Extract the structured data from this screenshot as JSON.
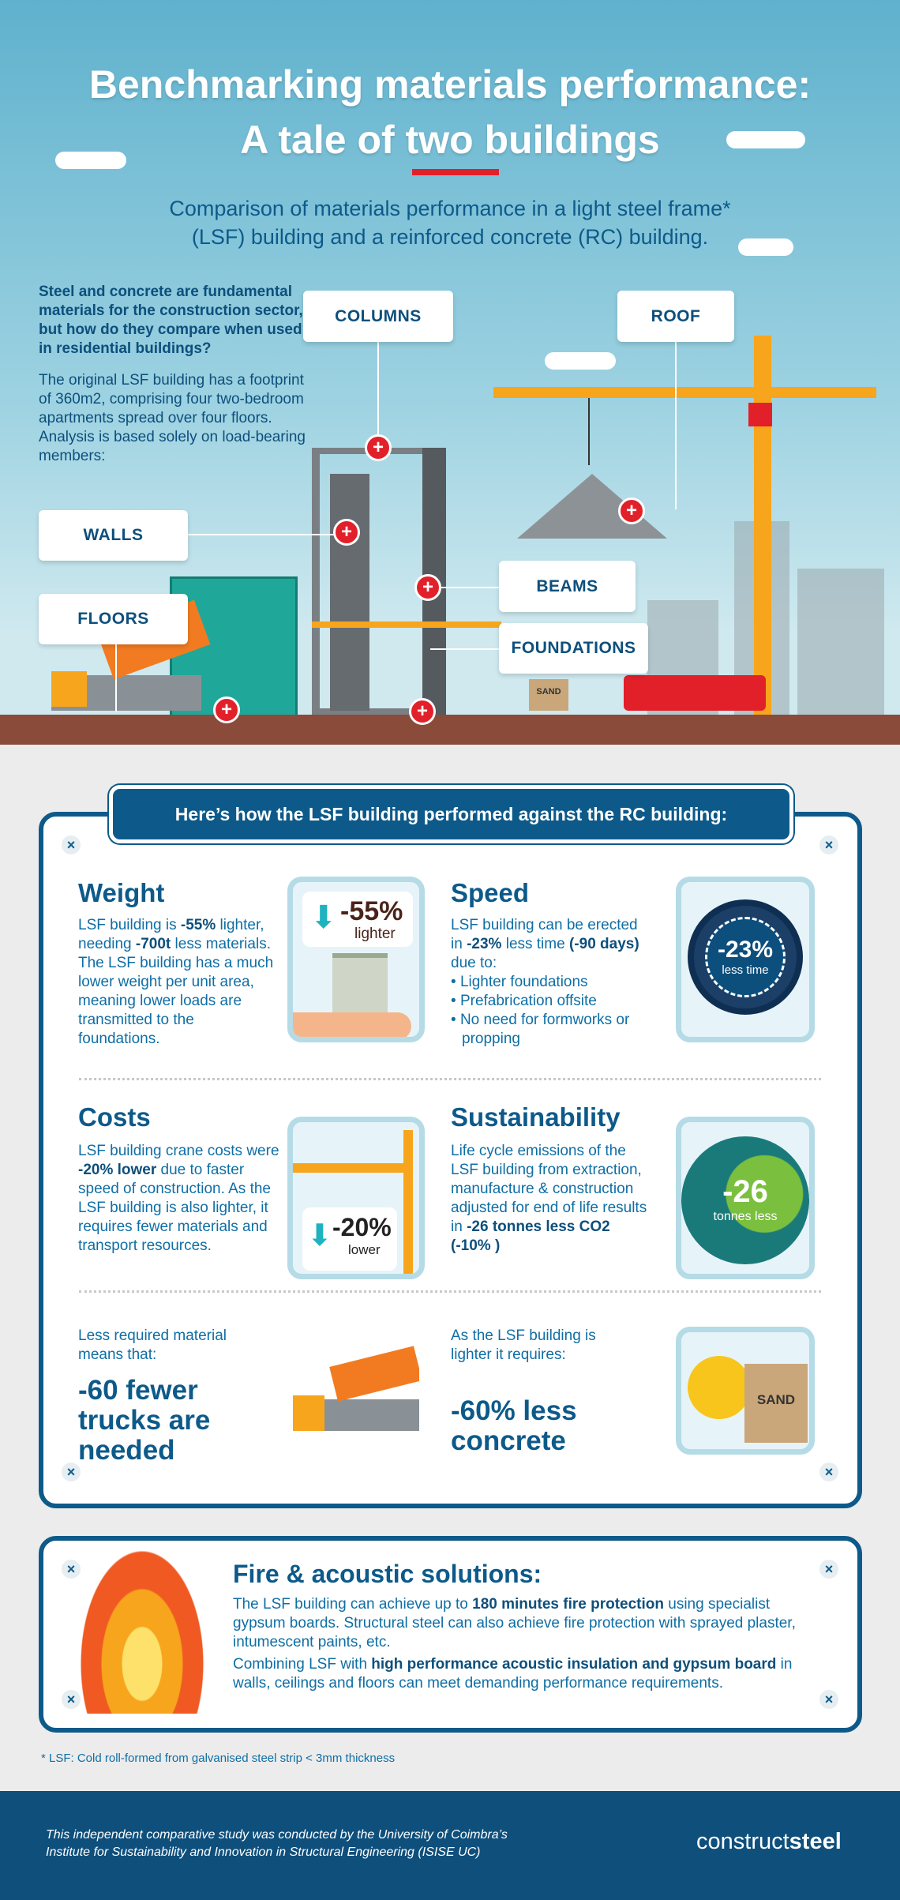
{
  "header": {
    "title_line1": "Benchmarking materials performance:",
    "title_line2": "A tale of two buildings",
    "subtitle_line1": "Comparison of materials performance in a light steel frame*",
    "subtitle_line2": "(LSF) building and a reinforced concrete (RC) building."
  },
  "intro": {
    "lead": "Steel and concrete are fundamental materials for the construction sector, but how do they compare when used in residential buildings?",
    "body": "The original LSF building has a footprint of 360m2, comprising four two-bedroom apartments spread over four floors. Analysis is based solely on load-bearing members:"
  },
  "labels": {
    "columns": "COLUMNS",
    "roof": "ROOF",
    "walls": "WALLS",
    "floors": "FLOORS",
    "beams": "BEAMS",
    "foundations": "FOUNDATIONS",
    "sand": "SAND"
  },
  "banner": "Here’s how the LSF building performed against the RC building:",
  "weight": {
    "title": "Weight",
    "t1": "LSF building is ",
    "b1": "-55%",
    "t2": " lighter, needing ",
    "b2": "-700t",
    "t3": " less materials. The LSF building has a much lower weight per unit area, meaning lower loads are transmitted to the foundations.",
    "badge": "-55%",
    "badge_sub": "lighter"
  },
  "speed": {
    "title": "Speed",
    "t1": "LSF building can be erected in ",
    "b1": "-23%",
    "t2": " less time ",
    "b2": "(-90 days)",
    "t3": " due to:",
    "bullets": [
      "Lighter foundations",
      "Prefabrication offsite",
      "No need for formworks or propping"
    ],
    "badge": "-23%",
    "badge_sub": "less time"
  },
  "costs": {
    "title": "Costs",
    "t1": "LSF building crane costs were ",
    "b1": "-20% lower",
    "t2": " due to faster speed of construction. As the LSF building is also lighter, it requires fewer materials and transport resources.",
    "badge": "-20%",
    "badge_sub": "lower"
  },
  "sustainability": {
    "title": "Sustainability",
    "t1": "Life cycle emissions of the LSF building from extraction, manufacture & construction adjusted for end of life results in ",
    "b1": "-26 tonnes less CO2 (-10% )",
    "badge": "-26",
    "badge_sub": "tonnes less"
  },
  "trucks": {
    "lead": "Less required material means that:",
    "big": "-60 fewer trucks are needed"
  },
  "concrete": {
    "lead": "As the LSF building is lighter it requires:",
    "big": "-60% less concrete"
  },
  "fire": {
    "title": "Fire & acoustic solutions:",
    "p1a": "The LSF building can achieve up to ",
    "p1b": "180 minutes fire protection",
    "p1c": " using specialist gypsum boards. Structural steel can also achieve fire protection with sprayed plaster, intumescent paints, etc.",
    "p2a": "Combining LSF with ",
    "p2b": "high performance acoustic insulation and gypsum board",
    "p2c": " in walls, ceilings and floors can meet demanding performance requirements."
  },
  "footnote": "* LSF: Cold roll-formed from galvanised steel strip < 3mm thickness",
  "footer": {
    "credit": "This independent comparative study was conducted by the University of Coimbra’s Institute for Sustainability and Innovation in Structural Engineering (ISISE UC)",
    "logo_a": "construct",
    "logo_b": "steel"
  },
  "colors": {
    "primary": "#0d5a8a",
    "accent_red": "#e2202a",
    "crane": "#f7a51c",
    "teal_arrow": "#1fb3c0"
  },
  "icons": {
    "close": "x-icon",
    "plus": "plus-marker-icon",
    "arrow": "arrow-down-icon"
  }
}
